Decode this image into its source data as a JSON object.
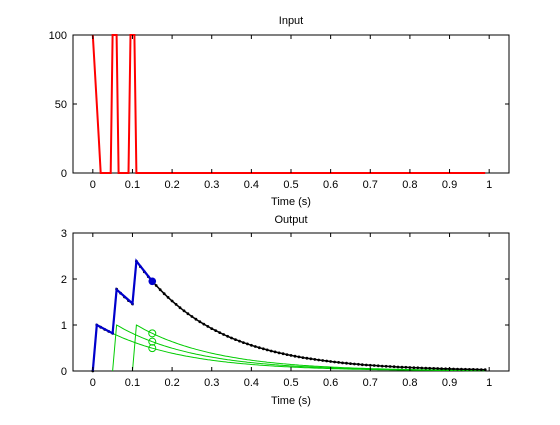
{
  "chart_data": [
    {
      "type": "line",
      "title": "Input",
      "xlabel": "Time (s)",
      "ylabel": "",
      "xlim": [
        -0.05,
        1.05
      ],
      "ylim": [
        0,
        100
      ],
      "x_ticks": [
        0,
        0.1,
        0.2,
        0.3,
        0.4,
        0.5,
        0.6,
        0.7,
        0.8,
        0.9,
        1
      ],
      "x_tick_labels": [
        "0",
        "0.1",
        "0.2",
        "0.3",
        "0.4",
        "0.5",
        "0.6",
        "0.7",
        "0.8",
        "0.9",
        "1"
      ],
      "y_ticks": [
        0,
        50,
        100
      ],
      "y_tick_labels": [
        "0",
        "50",
        "100"
      ],
      "grid": false,
      "series": [
        {
          "color": "#ff0000",
          "x": [
            0,
            0.005,
            0.01,
            0.015,
            0.02,
            0.025,
            0.045,
            0.05,
            0.055,
            0.06,
            0.065,
            0.07,
            0.09,
            0.095,
            0.1,
            0.105,
            0.11,
            0.115,
            0.99
          ],
          "y": [
            100,
            75,
            50,
            25,
            0,
            0,
            0,
            100,
            100,
            100,
            0,
            0,
            0,
            100,
            100,
            100,
            0,
            0,
            0
          ]
        }
      ]
    },
    {
      "type": "line",
      "title": "Output",
      "xlabel": "Time (s)",
      "ylabel": "",
      "xlim": [
        -0.05,
        1.05
      ],
      "ylim": [
        0,
        3
      ],
      "x_ticks": [
        0,
        0.1,
        0.2,
        0.3,
        0.4,
        0.5,
        0.6,
        0.7,
        0.8,
        0.9,
        1
      ],
      "x_tick_labels": [
        "0",
        "0.1",
        "0.2",
        "0.3",
        "0.4",
        "0.5",
        "0.6",
        "0.7",
        "0.8",
        "0.9",
        "1"
      ],
      "y_ticks": [
        0,
        1,
        2,
        3
      ],
      "y_tick_labels": [
        "0",
        "1",
        "2",
        "3"
      ],
      "grid": false,
      "series": [
        {
          "color": "#00cc00",
          "pulse_time": 0.01,
          "peak": 1.0,
          "decay": 0.2,
          "markers_at": [
            0.15
          ]
        },
        {
          "color": "#00cc00",
          "pulse_time": 0.06,
          "peak": 1.0,
          "decay": 0.2,
          "markers_at": [
            0.15
          ]
        },
        {
          "color": "#00cc00",
          "pulse_time": 0.11,
          "peak": 1.0,
          "decay": 0.2,
          "markers_at": [
            0.15
          ]
        },
        {
          "color": "#000000",
          "style": "dotted-markers",
          "x_step": 0.01,
          "x_max": 0.99
        },
        {
          "color": "#0000cc",
          "x": [
            0,
            0.01,
            0.05,
            0.06,
            0.1,
            0.11,
            0.15
          ],
          "y": [
            0,
            1.0,
            0.82,
            1.77,
            1.47,
            2.39,
            1.95
          ],
          "marker_x": 0.15,
          "marker_y": 1.95
        }
      ]
    }
  ]
}
